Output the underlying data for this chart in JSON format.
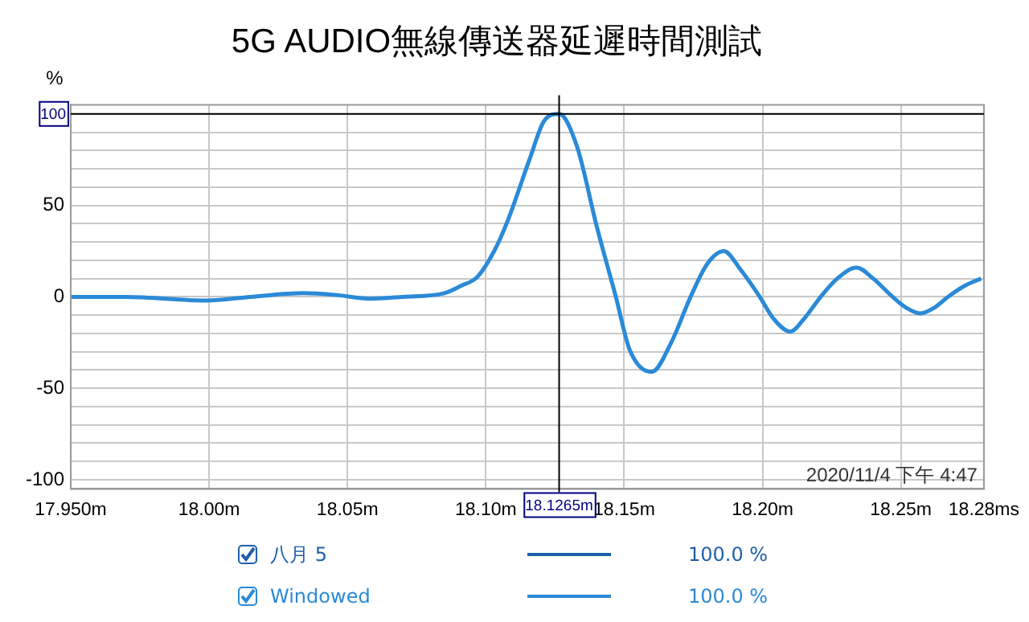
{
  "chart_data": {
    "type": "line",
    "title": "5G AUDIO無線傳送器延遲時間測試",
    "ylabel": "%",
    "x": [
      17.95,
      17.97,
      17.999,
      18.015,
      18.034,
      18.046,
      18.058,
      18.07,
      18.085,
      18.091,
      18.097,
      18.103,
      18.108,
      18.116,
      18.121,
      18.1265,
      18.133,
      18.14,
      18.147,
      18.152,
      18.16,
      18.167,
      18.174,
      18.18,
      18.186,
      18.192,
      18.199,
      18.204,
      18.21,
      18.215,
      18.221,
      18.227,
      18.234,
      18.24,
      18.247,
      18.252,
      18.257,
      18.262,
      18.267,
      18.273,
      18.279
    ],
    "series": [
      {
        "name": "八月 5",
        "color": "#1f5fa8",
        "values": [
          null,
          null,
          null,
          null,
          null,
          null,
          null,
          null,
          null,
          null,
          null,
          null,
          null,
          null,
          null,
          null,
          null,
          null,
          null,
          null,
          null,
          null,
          null,
          null,
          null,
          null,
          null,
          null,
          null,
          null,
          null,
          null,
          null,
          null,
          null,
          null,
          null,
          null,
          null,
          null,
          null
        ]
      },
      {
        "name": "Windowed",
        "color": "#2a8ad8",
        "values": [
          0,
          0,
          -2,
          0,
          2,
          1,
          -1,
          0,
          2,
          6,
          11,
          25,
          42,
          76,
          96,
          100,
          82,
          39,
          0,
          -29,
          -41,
          -25,
          0,
          18,
          25,
          15,
          0,
          -12,
          -19,
          -12,
          0,
          10,
          16,
          10,
          0,
          -6,
          -9,
          -6,
          0,
          6,
          10
        ]
      }
    ],
    "xlim": [
      17.95,
      18.28
    ],
    "xticks": [
      {
        "value": 17.95,
        "label": "17.950m"
      },
      {
        "value": 18.0,
        "label": "18.00m"
      },
      {
        "value": 18.05,
        "label": "18.05m"
      },
      {
        "value": 18.1,
        "label": "18.10m"
      },
      {
        "value": 18.15,
        "label": "18.15m"
      },
      {
        "value": 18.2,
        "label": "18.20m"
      },
      {
        "value": 18.25,
        "label": "18.25m"
      },
      {
        "value": 18.28,
        "label": "18.28ms"
      }
    ],
    "ylim": [
      -105,
      105
    ],
    "yticks": [
      -100,
      {
        "value": -90,
        "label": null
      },
      {
        "value": -80,
        "label": null
      },
      {
        "value": -70,
        "label": null
      },
      {
        "value": -60,
        "label": null
      },
      -50,
      {
        "value": -40,
        "label": null
      },
      {
        "value": -30,
        "label": null
      },
      {
        "value": -20,
        "label": null
      },
      {
        "value": -10,
        "label": null
      },
      0,
      {
        "value": 10,
        "label": null
      },
      {
        "value": 20,
        "label": null
      },
      {
        "value": 30,
        "label": null
      },
      {
        "value": 40,
        "label": null
      },
      50,
      {
        "value": 60,
        "label": null
      },
      {
        "value": 70,
        "label": null
      },
      {
        "value": 80,
        "label": null
      },
      {
        "value": 90,
        "label": null
      },
      {
        "value": 100,
        "label": null
      }
    ],
    "ref_lines": [
      {
        "axis": "x",
        "value": 18.1265,
        "label": "18.1265m",
        "color": "#000000"
      },
      {
        "axis": "y",
        "value": 100,
        "label": "100",
        "color": "#000000"
      }
    ],
    "annotations": [
      "2020/11/4 下午 4:47",
      "100.0 %",
      "100.0 %"
    ],
    "grid": true,
    "legend": "bottom",
    "marker": "none",
    "line_style": "solid"
  }
}
